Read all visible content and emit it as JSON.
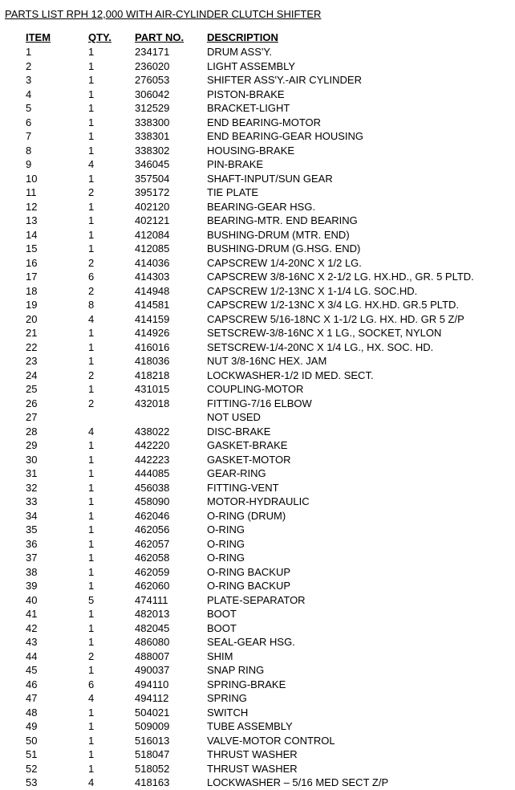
{
  "title": "PARTS LIST RPH 12,000 WITH AIR-CYLINDER CLUTCH SHIFTER",
  "headers": {
    "item": "ITEM",
    "qty": "QTY.",
    "part": "PART NO.",
    "desc": "DESCRIPTION"
  },
  "rows": [
    {
      "item": "1",
      "qty": "1",
      "part": "234171",
      "desc": "DRUM ASS'Y."
    },
    {
      "item": "2",
      "qty": "1",
      "part": "236020",
      "desc": "LIGHT ASSEMBLY"
    },
    {
      "item": "3",
      "qty": "1",
      "part": "276053",
      "desc": "SHIFTER ASS'Y.-AIR CYLINDER"
    },
    {
      "item": "4",
      "qty": "1",
      "part": "306042",
      "desc": "PISTON-BRAKE"
    },
    {
      "item": "5",
      "qty": "1",
      "part": "312529",
      "desc": "BRACKET-LIGHT"
    },
    {
      "item": "6",
      "qty": "1",
      "part": "338300",
      "desc": "END BEARING-MOTOR"
    },
    {
      "item": "7",
      "qty": "1",
      "part": "338301",
      "desc": "END BEARING-GEAR HOUSING"
    },
    {
      "item": "8",
      "qty": "1",
      "part": "338302",
      "desc": "HOUSING-BRAKE"
    },
    {
      "item": "9",
      "qty": "4",
      "part": "346045",
      "desc": "PIN-BRAKE"
    },
    {
      "item": "10",
      "qty": "1",
      "part": "357504",
      "desc": "SHAFT-INPUT/SUN GEAR"
    },
    {
      "item": "11",
      "qty": "2",
      "part": "395172",
      "desc": "TIE PLATE"
    },
    {
      "item": "12",
      "qty": "1",
      "part": "402120",
      "desc": "BEARING-GEAR HSG."
    },
    {
      "item": "13",
      "qty": "1",
      "part": "402121",
      "desc": "BEARING-MTR. END BEARING"
    },
    {
      "item": "14",
      "qty": "1",
      "part": "412084",
      "desc": "BUSHING-DRUM (MTR. END)"
    },
    {
      "item": "15",
      "qty": "1",
      "part": "412085",
      "desc": "BUSHING-DRUM (G.HSG. END)"
    },
    {
      "item": "16",
      "qty": "2",
      "part": "414036",
      "desc": "CAPSCREW 1/4-20NC X 1/2 LG."
    },
    {
      "item": "17",
      "qty": "6",
      "part": "414303",
      "desc": " CAPSCREW 3/8-16NC X 2-1/2 LG. HX.HD., GR. 5 PLTD."
    },
    {
      "item": "18",
      "qty": "2",
      "part": "414948",
      "desc": "CAPSCREW 1/2-13NC X 1-1/4 LG. SOC.HD."
    },
    {
      "item": "19",
      "qty": "8",
      "part": "414581",
      "desc": "CAPSCREW 1/2-13NC X 3/4 LG. HX.HD. GR.5 PLTD."
    },
    {
      "item": "20",
      "qty": "4",
      "part": "414159",
      "desc": "CAPSCREW 5/16-18NC X 1-1/2 LG. HX. HD. GR 5 Z/P"
    },
    {
      "item": "21",
      "qty": "1",
      "part": "414926",
      "desc": "SETSCREW-3/8-16NC X 1 LG., SOCKET, NYLON"
    },
    {
      "item": "22",
      "qty": "1",
      "part": "416016",
      "desc": " SETSCREW-1/4-20NC X 1/4 LG., HX. SOC. HD."
    },
    {
      "item": "23",
      "qty": "1",
      "part": "418036",
      "desc": "NUT 3/8-16NC HEX. JAM"
    },
    {
      "item": "24",
      "qty": "2",
      "part": "418218",
      "desc": "LOCKWASHER-1/2 ID MED. SECT."
    },
    {
      "item": "25",
      "qty": "1",
      "part": "431015",
      "desc": "COUPLING-MOTOR"
    },
    {
      "item": "26",
      "qty": "2",
      "part": "432018",
      "desc": "FITTING-7/16 ELBOW"
    },
    {
      "item": "27",
      "qty": "",
      "part": "",
      "desc": "NOT USED"
    },
    {
      "item": "28",
      "qty": "4",
      "part": "438022",
      "desc": "DISC-BRAKE"
    },
    {
      "item": "29",
      "qty": "1",
      "part": "442220",
      "desc": "GASKET-BRAKE"
    },
    {
      "item": "30",
      "qty": "1",
      "part": "442223",
      "desc": " GASKET-MOTOR"
    },
    {
      "item": "31",
      "qty": "1",
      "part": "444085",
      "desc": "GEAR-RING"
    },
    {
      "item": "32",
      "qty": "1",
      "part": "456038",
      "desc": "FITTING-VENT"
    },
    {
      "item": "33",
      "qty": "1",
      "part": "458090",
      "desc": "MOTOR-HYDRAULIC"
    },
    {
      "item": "34",
      "qty": "1",
      "part": "462046",
      "desc": "O-RING (DRUM)"
    },
    {
      "item": "35",
      "qty": "1",
      "part": "462056",
      "desc": "O-RING"
    },
    {
      "item": "36",
      "qty": "1",
      "part": "462057",
      "desc": "O-RING"
    },
    {
      "item": "37",
      "qty": "1",
      "part": "462058",
      "desc": "O-RING"
    },
    {
      "item": "38",
      "qty": "1",
      "part": "462059",
      "desc": "O-RING BACKUP"
    },
    {
      "item": "39",
      "qty": "1",
      "part": "462060",
      "desc": "O-RING BACKUP"
    },
    {
      "item": "40",
      "qty": "5",
      "part": "474111",
      "desc": "PLATE-SEPARATOR"
    },
    {
      "item": "41",
      "qty": "1",
      "part": "482013",
      "desc": "BOOT"
    },
    {
      "item": "42",
      "qty": "1",
      "part": "482045",
      "desc": "BOOT"
    },
    {
      "item": "43",
      "qty": "1",
      "part": "486080",
      "desc": "SEAL-GEAR HSG."
    },
    {
      "item": "44",
      "qty": "2",
      "part": "488007",
      "desc": "SHIM"
    },
    {
      "item": "45",
      "qty": "1",
      "part": "490037",
      "desc": "SNAP RING"
    },
    {
      "item": "46",
      "qty": "6",
      "part": "494110",
      "desc": "SPRING-BRAKE"
    },
    {
      "item": "47",
      "qty": "4",
      "part": "494112",
      "desc": "SPRING"
    },
    {
      "item": "48",
      "qty": "1",
      "part": "504021",
      "desc": "SWITCH"
    },
    {
      "item": "49",
      "qty": "1",
      "part": "509009",
      "desc": "TUBE ASSEMBLY"
    },
    {
      "item": "50",
      "qty": "1",
      "part": "516013",
      "desc": "VALVE-MOTOR CONTROL"
    },
    {
      "item": "51",
      "qty": "1",
      "part": "518047",
      "desc": "THRUST WASHER"
    },
    {
      "item": "52",
      "qty": "1",
      "part": "518052",
      "desc": "THRUST WASHER"
    },
    {
      "item": "53",
      "qty": "4",
      "part": "418163",
      "desc": "LOCKWASHER – 5/16 MED SECT Z/P"
    }
  ]
}
